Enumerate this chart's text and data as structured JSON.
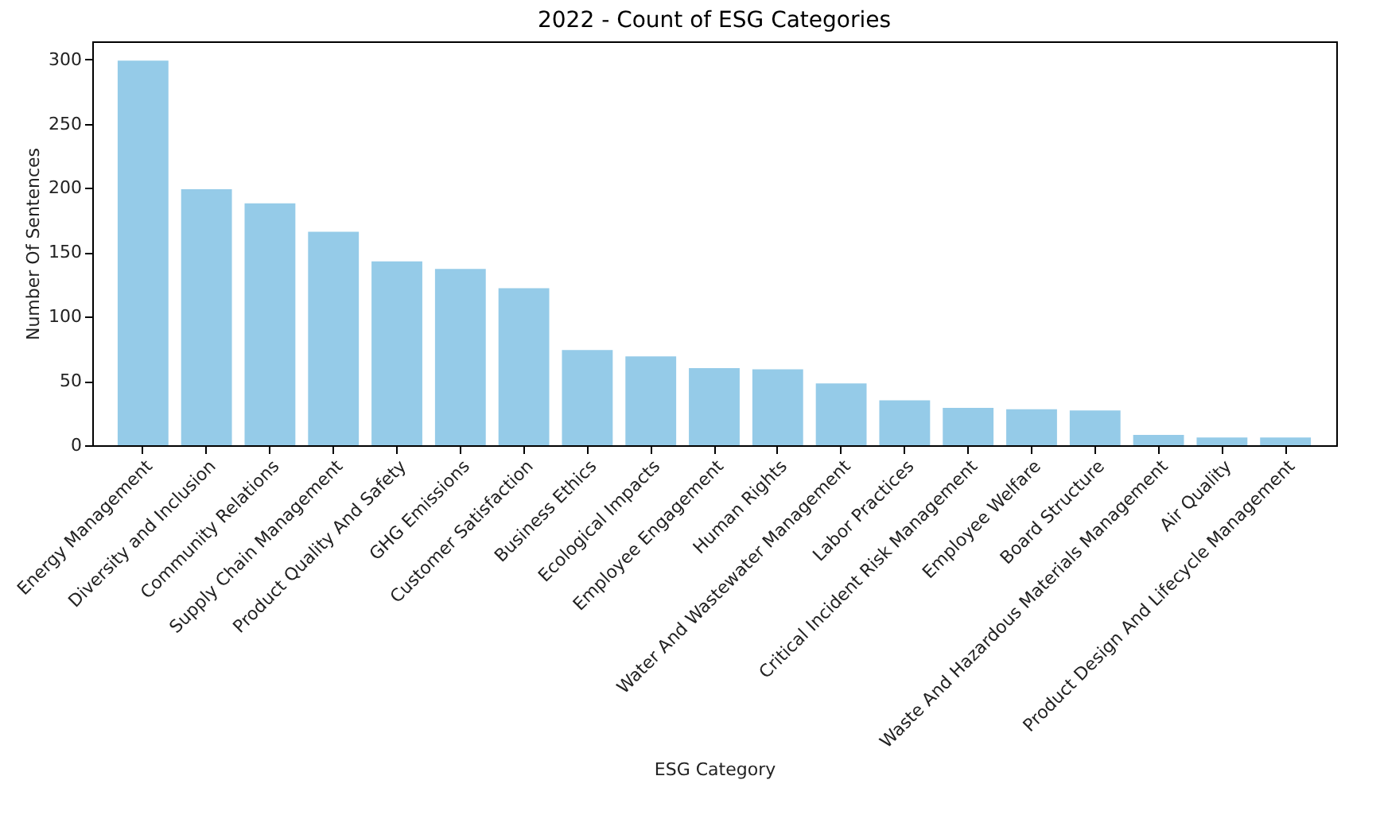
{
  "chart_data": {
    "type": "bar",
    "title": "2022 - Count of ESG Categories",
    "xlabel": "ESG Category",
    "ylabel": "Number Of Sentences",
    "categories": [
      "Energy Management",
      "Diversity and Inclusion",
      "Community Relations",
      "Supply Chain Management",
      "Product Quality And Safety",
      "GHG Emissions",
      "Customer Satisfaction",
      "Business Ethics",
      "Ecological Impacts",
      "Employee Engagement",
      "Human Rights",
      "Water And Wastewater Management",
      "Labor Practices",
      "Critical Incident Risk Management",
      "Employee Welfare",
      "Board Structure",
      "Waste And Hazardous Materials Management",
      "Air Quality",
      "Product Design And Lifecycle Management"
    ],
    "values": [
      299,
      199,
      188,
      166,
      143,
      137,
      122,
      74,
      69,
      60,
      59,
      48,
      35,
      29,
      28,
      27,
      8,
      6,
      6
    ],
    "color": "#95cbe8",
    "ylim": [
      0,
      314
    ],
    "yticks": [
      0,
      50,
      100,
      150,
      200,
      250,
      300
    ],
    "grid": false
  }
}
